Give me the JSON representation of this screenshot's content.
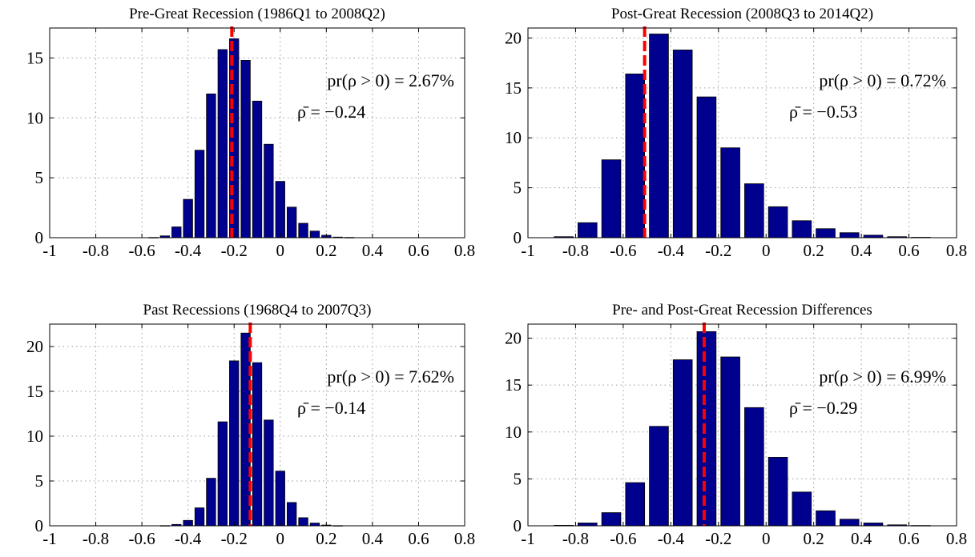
{
  "chart_data": [
    {
      "type": "bar",
      "title": "Pre-Great Recession (1986Q1 to 2008Q2)",
      "x": [
        -0.9,
        -0.85,
        -0.8,
        -0.75,
        -0.7,
        -0.65,
        -0.6,
        -0.55,
        -0.5,
        -0.45,
        -0.4,
        -0.35,
        -0.3,
        -0.25,
        -0.2,
        -0.15,
        -0.1,
        -0.05,
        0.0,
        0.05,
        0.1,
        0.15,
        0.2,
        0.25,
        0.3,
        0.35,
        0.4,
        0.45,
        0.5,
        0.55,
        0.6,
        0.65,
        0.7
      ],
      "values": [
        0,
        0,
        0,
        0,
        0,
        0,
        0,
        0.02,
        0.15,
        0.9,
        3.2,
        7.3,
        12.0,
        15.7,
        16.6,
        14.8,
        11.4,
        7.8,
        4.7,
        2.55,
        1.2,
        0.55,
        0.2,
        0.05,
        0.02,
        0,
        0,
        0,
        0,
        0,
        0,
        0,
        0
      ],
      "bar_width": 0.04,
      "xlim": [
        -1,
        0.8
      ],
      "ylim": [
        0,
        17.5
      ],
      "xticks": [
        "-1",
        "-0.8",
        "-0.6",
        "-0.4",
        "-0.2",
        "0",
        "0.2",
        "0.4",
        "0.6",
        "0.8"
      ],
      "yticks": [
        "0",
        "5",
        "10",
        "15"
      ],
      "mean_line": -0.21,
      "annotation": {
        "prob": "pr(ρ > 0) = 2.67%",
        "mean": "ρ̄ = −0.24"
      },
      "grid": true
    },
    {
      "type": "bar",
      "title": "Post-Great Recession (2008Q3 to 2014Q2)",
      "x": [
        -0.85,
        -0.75,
        -0.65,
        -0.55,
        -0.45,
        -0.35,
        -0.25,
        -0.15,
        -0.05,
        0.05,
        0.15,
        0.25,
        0.35,
        0.45,
        0.55,
        0.65
      ],
      "values": [
        0.1,
        1.5,
        7.8,
        16.4,
        20.4,
        18.8,
        14.1,
        9.0,
        5.4,
        3.1,
        1.7,
        0.9,
        0.5,
        0.25,
        0.1,
        0.04
      ],
      "bar_width": 0.08,
      "xlim": [
        -1,
        0.8
      ],
      "ylim": [
        0,
        21
      ],
      "xticks": [
        "-1",
        "-0.8",
        "-0.6",
        "-0.4",
        "-0.2",
        "0",
        "0.2",
        "0.4",
        "0.6",
        "0.8"
      ],
      "yticks": [
        "0",
        "5",
        "10",
        "15",
        "20"
      ],
      "mean_line": -0.51,
      "annotation": {
        "prob": "pr(ρ > 0) = 0.72%",
        "mean": "ρ̄ = −0.53"
      },
      "grid": true
    },
    {
      "type": "bar",
      "title": "Past Recessions (1968Q4 to 2007Q3)",
      "x": [
        -0.9,
        -0.85,
        -0.8,
        -0.75,
        -0.7,
        -0.65,
        -0.6,
        -0.55,
        -0.5,
        -0.45,
        -0.4,
        -0.35,
        -0.3,
        -0.25,
        -0.2,
        -0.15,
        -0.1,
        -0.05,
        0.0,
        0.05,
        0.1,
        0.15,
        0.2,
        0.25,
        0.3,
        0.35,
        0.4,
        0.45,
        0.5,
        0.55,
        0.6,
        0.65,
        0.7
      ],
      "values": [
        0,
        0,
        0,
        0,
        0,
        0,
        0,
        0,
        0.02,
        0.15,
        0.6,
        2.0,
        5.3,
        11.6,
        18.4,
        21.5,
        18.2,
        11.8,
        6.1,
        2.6,
        0.9,
        0.3,
        0.08,
        0.02,
        0,
        0,
        0,
        0,
        0,
        0,
        0,
        0,
        0
      ],
      "bar_width": 0.04,
      "xlim": [
        -1,
        0.8
      ],
      "ylim": [
        0,
        22.5
      ],
      "xticks": [
        "-1",
        "-0.8",
        "-0.6",
        "-0.4",
        "-0.2",
        "0",
        "0.2",
        "0.4",
        "0.6",
        "0.8"
      ],
      "yticks": [
        "0",
        "5",
        "10",
        "15",
        "20"
      ],
      "mean_line": -0.13,
      "annotation": {
        "prob": "pr(ρ > 0) = 7.62%",
        "mean": "ρ̄ = −0.14"
      },
      "grid": true
    },
    {
      "type": "bar",
      "title": "Pre- and Post-Great Recession Differences",
      "x": [
        -0.85,
        -0.75,
        -0.65,
        -0.55,
        -0.45,
        -0.35,
        -0.25,
        -0.15,
        -0.05,
        0.05,
        0.15,
        0.25,
        0.35,
        0.45,
        0.55,
        0.65
      ],
      "values": [
        0.05,
        0.3,
        1.4,
        4.6,
        10.6,
        17.7,
        20.7,
        18.0,
        12.6,
        7.3,
        3.6,
        1.6,
        0.7,
        0.3,
        0.1,
        0.03
      ],
      "bar_width": 0.08,
      "xlim": [
        -1,
        0.8
      ],
      "ylim": [
        0,
        21.5
      ],
      "xticks": [
        "-1",
        "-0.8",
        "-0.6",
        "-0.4",
        "-0.2",
        "0",
        "0.2",
        "0.4",
        "0.6",
        "0.8"
      ],
      "yticks": [
        "0",
        "5",
        "10",
        "15",
        "20"
      ],
      "mean_line": -0.26,
      "annotation": {
        "prob": "pr(ρ > 0) = 6.99%",
        "mean": "ρ̄ = −0.29"
      },
      "grid": true
    }
  ],
  "colors": {
    "bar_fill": "#00008f",
    "bar_edge": "#000000",
    "mean_line": "#ff0000",
    "grid": "#9a9a9a"
  }
}
